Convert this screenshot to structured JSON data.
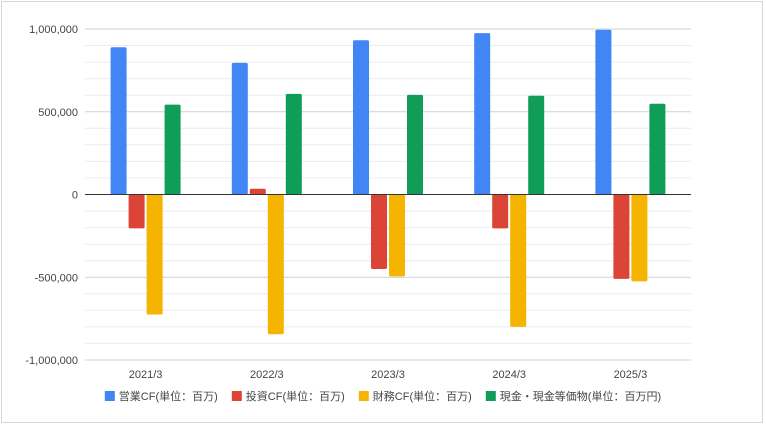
{
  "chart_data": {
    "type": "bar",
    "title": "",
    "xlabel": "",
    "ylabel": "",
    "categories": [
      "2021/3",
      "2022/3",
      "2023/3",
      "2024/3",
      "2025/3"
    ],
    "ylim": [
      -1000000,
      1000000
    ],
    "yticks": [
      1000000,
      500000,
      0,
      -500000,
      -1000000
    ],
    "ytick_labels": [
      "1,000,000",
      "500,000",
      "0",
      "-500,000",
      "-1,000,000"
    ],
    "grid": true,
    "legend_position": "bottom",
    "series": [
      {
        "name": "営業CF(単位：百万)",
        "color": "#4285F4",
        "values": [
          890000,
          795000,
          932000,
          975000,
          995000
        ]
      },
      {
        "name": "投資CF(単位：百万)",
        "color": "#DB4437",
        "values": [
          -205000,
          35000,
          -450000,
          -205000,
          -510000
        ]
      },
      {
        "name": "財務CF(単位：百万)",
        "color": "#F4B400",
        "values": [
          -725000,
          -845000,
          -495000,
          -800000,
          -525000
        ]
      },
      {
        "name": "現金・現金等価物(単位：百万円)",
        "color": "#0F9D58",
        "values": [
          543000,
          608000,
          602000,
          597000,
          548000
        ]
      }
    ]
  }
}
